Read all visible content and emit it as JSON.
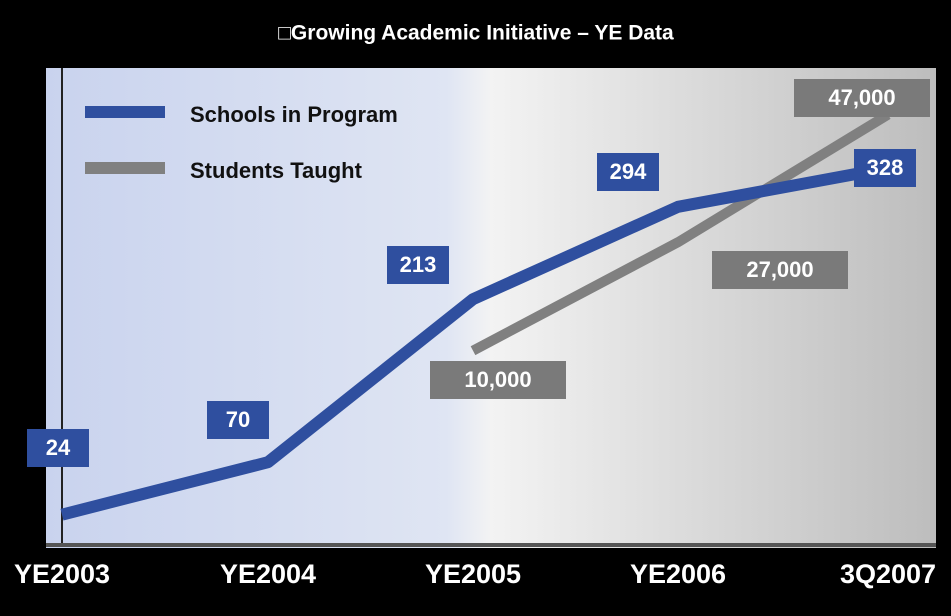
{
  "chart_data": {
    "type": "line",
    "title": "□Growing Academic Initiative – YE Data",
    "categories": [
      "YE2003",
      "YE2004",
      "YE2005",
      "YE2006",
      "3Q2007"
    ],
    "series": [
      {
        "name": "Schools in Program",
        "color": "#2f4f9f",
        "values": [
          24,
          70,
          213,
          294,
          328
        ]
      },
      {
        "name": "Students Taught",
        "color": "#808080",
        "axis": "y2",
        "values": [
          null,
          null,
          10000,
          27000,
          47000
        ],
        "value_labels": [
          null,
          null,
          "10,000",
          "27,000",
          "47,000"
        ]
      }
    ],
    "ylim": [
      0,
      414
    ],
    "y2lim": [
      -20000,
      54000
    ],
    "legend": "upper left"
  }
}
